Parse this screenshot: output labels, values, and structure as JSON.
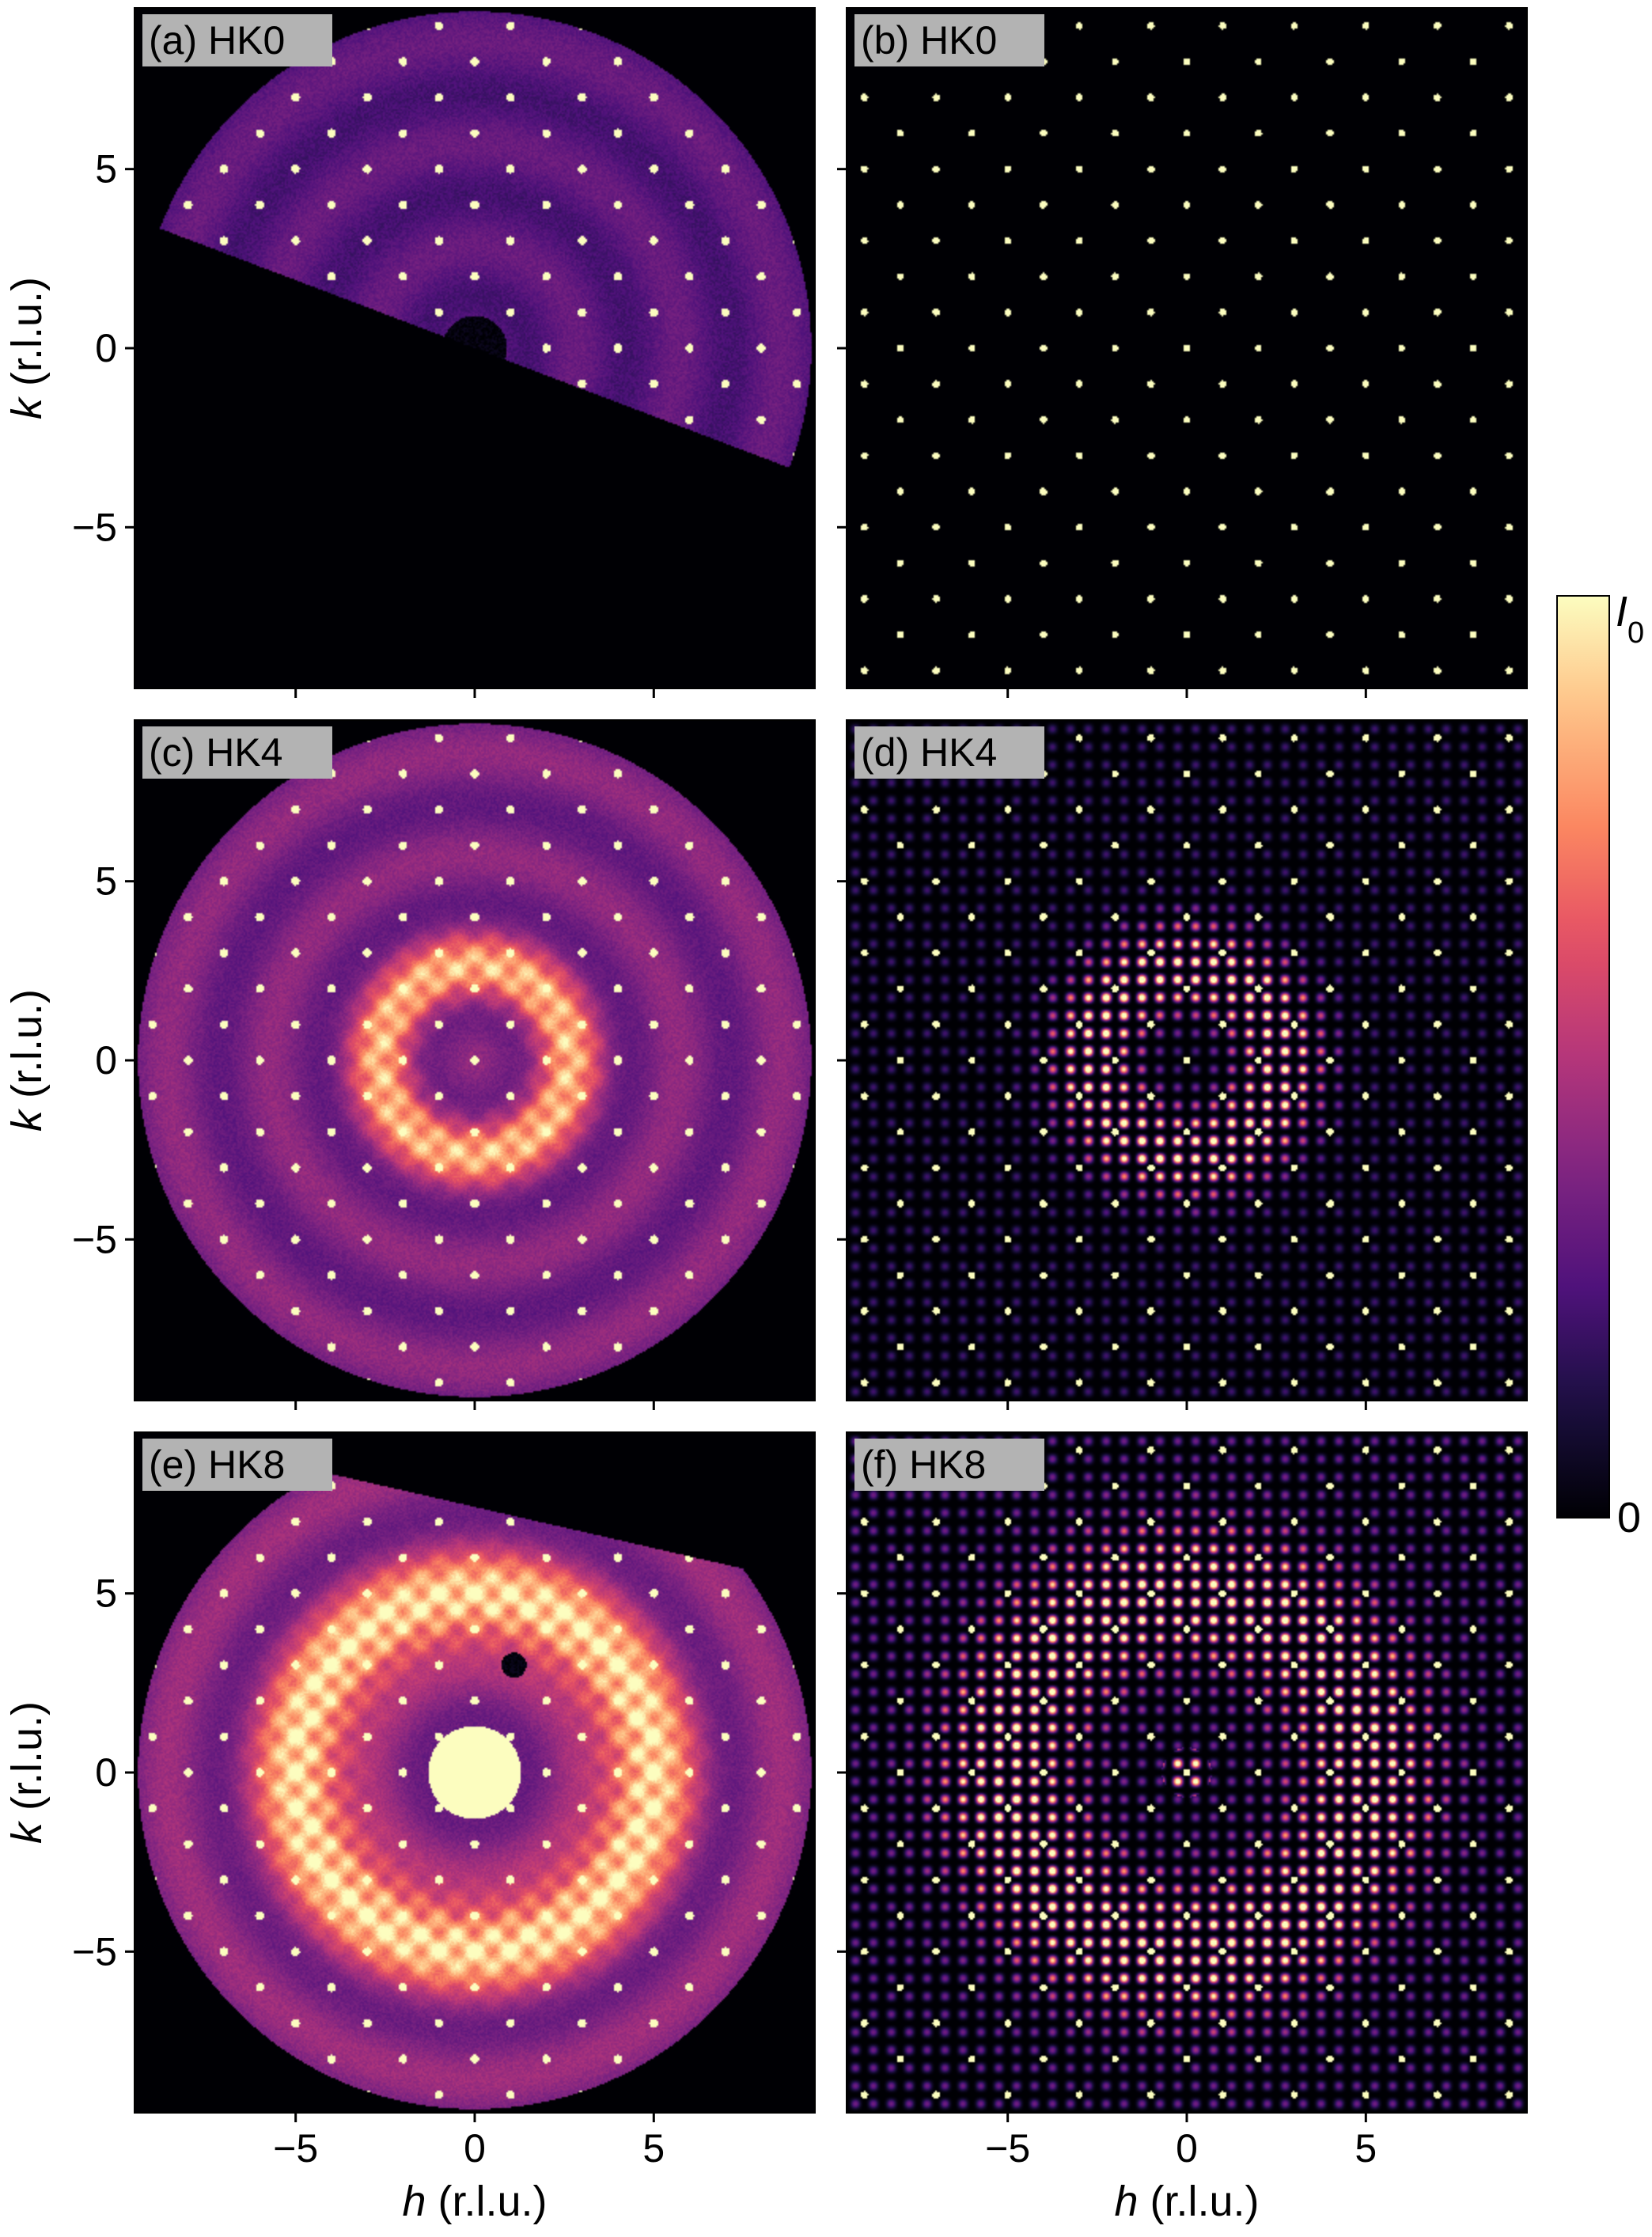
{
  "chart_data": {
    "type": "heatmap",
    "colormap": "magma",
    "x_range": [
      -9.5,
      9.5
    ],
    "y_range": [
      -9.5,
      9.5
    ],
    "x_ticks": [
      -5,
      0,
      5
    ],
    "y_ticks": [
      -5,
      0,
      5
    ],
    "x_tick_labels": [
      "−5",
      "0",
      "5"
    ],
    "y_tick_labels": [
      "−5",
      "0",
      "5"
    ],
    "xlabel": {
      "var": "h",
      "unit": " (r.l.u.)"
    },
    "ylabel": {
      "var": "k",
      "unit": " (r.l.u.)"
    },
    "colorbar": {
      "range": [
        0,
        1
      ],
      "max_label": {
        "var": "I",
        "sub": "0"
      },
      "min_label": "0"
    },
    "lattice_step": 1.0,
    "panels": [
      {
        "id": "a",
        "label": "(a) HK0",
        "kind": "measured",
        "ring_center": 0,
        "ring_width": 0,
        "ring_strength": 0.0,
        "background": 0.32,
        "central_blob": 0,
        "beamstop_radius": 0.9,
        "coverage": "cut-lower"
      },
      {
        "id": "b",
        "label": "(b) HK0",
        "kind": "simulated",
        "ring_center": 0,
        "ring_width": 0,
        "ring_strength": 0.0,
        "diffuse_strength": 0.0
      },
      {
        "id": "c",
        "label": "(c) HK4",
        "kind": "measured",
        "ring_center": 2.6,
        "ring_width": 0.9,
        "ring_strength": 0.6,
        "background": 0.42,
        "central_blob": 0,
        "beamstop_radius": 0,
        "coverage": "near-full"
      },
      {
        "id": "d",
        "label": "(d) HK4",
        "kind": "simulated",
        "ring_center": 2.6,
        "ring_width": 1.2,
        "ring_strength": 0.9,
        "diffuse_strength": 0.45
      },
      {
        "id": "e",
        "label": "(e) HK8",
        "kind": "measured",
        "ring_center": 4.8,
        "ring_width": 1.2,
        "ring_strength": 0.75,
        "background": 0.45,
        "central_blob": 1.3,
        "beamstop_radius": 0.35,
        "coverage": "cut-upper-right"
      },
      {
        "id": "f",
        "label": "(f) HK8",
        "kind": "simulated",
        "ring_center": 5.0,
        "ring_width": 1.8,
        "ring_strength": 0.85,
        "diffuse_strength": 0.7
      }
    ]
  }
}
